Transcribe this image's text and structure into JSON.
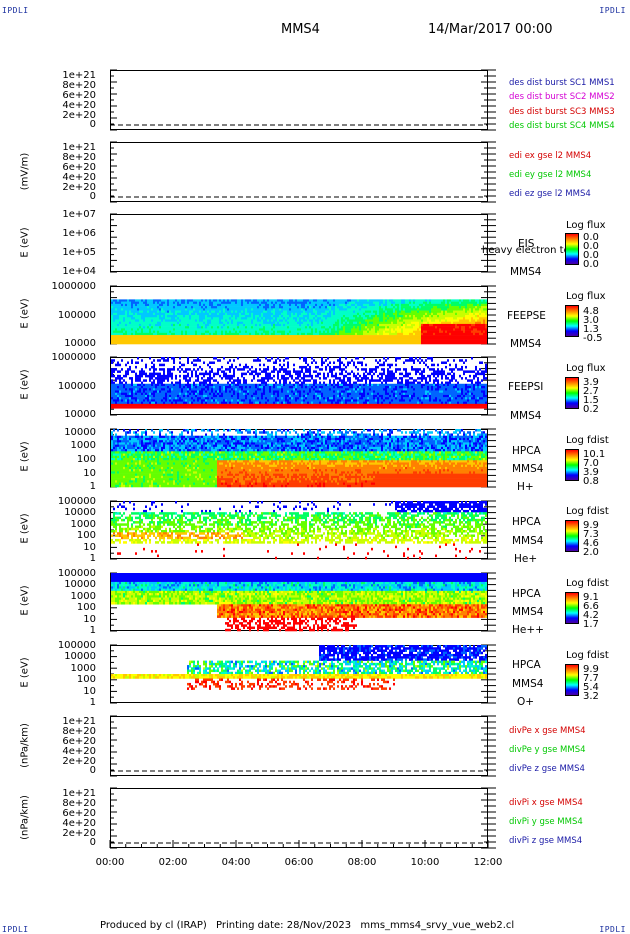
{
  "header": {
    "corner_label": "IPDLI",
    "spacecraft": "MMS4",
    "datetime": "14/Mar/2017 00:00"
  },
  "footer": {
    "produced_by": "Produced by cl (IRAP)",
    "printing_date": "Printing date: 28/Nov/2023",
    "script_name": "mms_mms4_srvy_vue_web2.cl"
  },
  "colors": {
    "mms1": "#1a1aa6",
    "mms2": "#d400d4",
    "mms3": "#d40000",
    "mms4": "#00c800",
    "x": "#d40000",
    "y": "#00c800",
    "z": "#1a1aa6"
  },
  "chart_data": [
    {
      "type": "line",
      "ylabel": "",
      "ytick_labels": [
        "1e+21",
        "8e+20",
        "6e+20",
        "4e+20",
        "2e+20",
        "0"
      ],
      "yticks": [
        1e+21,
        8e+20,
        6e+20,
        4e+20,
        2e+20,
        0
      ],
      "ylim": [
        0,
        1.1e+21
      ],
      "series": [
        {
          "name": "des dist burst SC1 MMS1",
          "values": []
        },
        {
          "name": "des dist burst SC2 MMS2",
          "values": []
        },
        {
          "name": "des dist burst SC3 MMS3",
          "values": []
        },
        {
          "name": "des dist burst SC4 MMS4",
          "values": []
        }
      ]
    },
    {
      "type": "line",
      "ylabel": "(mV/m)",
      "ytick_labels": [
        "1e+21",
        "8e+20",
        "6e+20",
        "4e+20",
        "2e+20",
        "0"
      ],
      "yticks": [
        1e+21,
        8e+20,
        6e+20,
        4e+20,
        2e+20,
        0
      ],
      "ylim": [
        0,
        1.1e+21
      ],
      "series": [
        {
          "name": "edi ex gse l2 MMS4",
          "values": []
        },
        {
          "name": "edi ey gse l2 MMS4",
          "values": []
        },
        {
          "name": "edi ez gse l2 MMS4",
          "values": []
        }
      ]
    },
    {
      "type": "heatmap",
      "ylabel": "E (eV)",
      "scale": "log",
      "ytick_labels": [
        "1e+07",
        "1e+06",
        "1e+05",
        "1e+04"
      ],
      "yticks": [
        10000000.0,
        1000000.0,
        100000.0,
        10000.0
      ],
      "instrument": [
        "EIS",
        "MMS4"
      ],
      "overlay_text": "heavy electron to",
      "colorbar": {
        "title": "Log flux",
        "values": [
          "0.0",
          "0.0",
          "0.0",
          "0.0"
        ]
      }
    },
    {
      "type": "heatmap",
      "ylabel": "E (eV)",
      "scale": "log",
      "ytick_labels": [
        "1000000",
        "100000",
        "10000"
      ],
      "yticks": [
        1000000.0,
        100000.0,
        10000.0
      ],
      "instrument": [
        "FEEPSE",
        "MMS4"
      ],
      "colorbar": {
        "title": "Log flux",
        "values": [
          "4.8",
          "3.0",
          "1.3",
          "-0.5"
        ]
      }
    },
    {
      "type": "heatmap",
      "ylabel": "E (eV)",
      "scale": "log",
      "ytick_labels": [
        "1000000",
        "100000",
        "10000"
      ],
      "yticks": [
        1000000.0,
        100000.0,
        10000.0
      ],
      "instrument": [
        "FEEPSI",
        "MMS4"
      ],
      "colorbar": {
        "title": "Log flux",
        "values": [
          "3.9",
          "2.7",
          "1.5",
          "0.2"
        ]
      }
    },
    {
      "type": "heatmap",
      "ylabel": "E (eV)",
      "scale": "log",
      "ytick_labels": [
        "10000",
        "1000",
        "100",
        "10",
        "1"
      ],
      "yticks": [
        10000.0,
        1000.0,
        100,
        10,
        1
      ],
      "instrument": [
        "HPCA",
        "MMS4",
        "H+"
      ],
      "colorbar": {
        "title": "Log fdist",
        "values": [
          "10.1",
          "7.0",
          "3.9",
          "0.8"
        ]
      }
    },
    {
      "type": "heatmap",
      "ylabel": "E (eV)",
      "scale": "log",
      "ytick_labels": [
        "100000",
        "10000",
        "1000",
        "100",
        "10",
        "1"
      ],
      "yticks": [
        100000.0,
        10000.0,
        1000.0,
        100,
        10,
        1
      ],
      "instrument": [
        "HPCA",
        "MMS4",
        "He+"
      ],
      "colorbar": {
        "title": "Log fdist",
        "values": [
          "9.9",
          "7.3",
          "4.6",
          "2.0"
        ]
      }
    },
    {
      "type": "heatmap",
      "ylabel": "E (eV)",
      "scale": "log",
      "ytick_labels": [
        "100000",
        "10000",
        "1000",
        "100",
        "10",
        "1"
      ],
      "yticks": [
        100000.0,
        10000.0,
        1000.0,
        100,
        10,
        1
      ],
      "instrument": [
        "HPCA",
        "MMS4",
        "He++"
      ],
      "colorbar": {
        "title": "Log fdist",
        "values": [
          "9.1",
          "6.6",
          "4.2",
          "1.7"
        ]
      }
    },
    {
      "type": "heatmap",
      "ylabel": "E (eV)",
      "scale": "log",
      "ytick_labels": [
        "100000",
        "10000",
        "1000",
        "100",
        "10",
        "1"
      ],
      "yticks": [
        100000.0,
        10000.0,
        1000.0,
        100,
        10,
        1
      ],
      "instrument": [
        "HPCA",
        "MMS4",
        "O+"
      ],
      "colorbar": {
        "title": "Log fdist",
        "values": [
          "9.9",
          "7.7",
          "5.4",
          "3.2"
        ]
      }
    },
    {
      "type": "line",
      "ylabel": "(nPa/km)",
      "ytick_labels": [
        "1e+21",
        "8e+20",
        "6e+20",
        "4e+20",
        "2e+20",
        "0"
      ],
      "yticks": [
        1e+21,
        8e+20,
        6e+20,
        4e+20,
        2e+20,
        0
      ],
      "ylim": [
        0,
        1.1e+21
      ],
      "series": [
        {
          "name": "divPe x gse MMS4",
          "values": []
        },
        {
          "name": "divPe y gse MMS4",
          "values": []
        },
        {
          "name": "divPe z gse MMS4",
          "values": []
        }
      ]
    },
    {
      "type": "line",
      "ylabel": "(nPa/km)",
      "ytick_labels": [
        "1e+21",
        "8e+20",
        "6e+20",
        "4e+20",
        "2e+20",
        "0"
      ],
      "yticks": [
        1e+21,
        8e+20,
        6e+20,
        4e+20,
        2e+20,
        0
      ],
      "ylim": [
        0,
        1.1e+21
      ],
      "series": [
        {
          "name": "divPi x gse MMS4",
          "values": []
        },
        {
          "name": "divPi y gse MMS4",
          "values": []
        },
        {
          "name": "divPi z gse MMS4",
          "values": []
        }
      ]
    }
  ],
  "x_axis": {
    "tick_labels": [
      "00:00",
      "02:00",
      "04:00",
      "06:00",
      "08:00",
      "10:00",
      "12:00"
    ],
    "xlim": [
      "00:00",
      "12:00"
    ]
  }
}
